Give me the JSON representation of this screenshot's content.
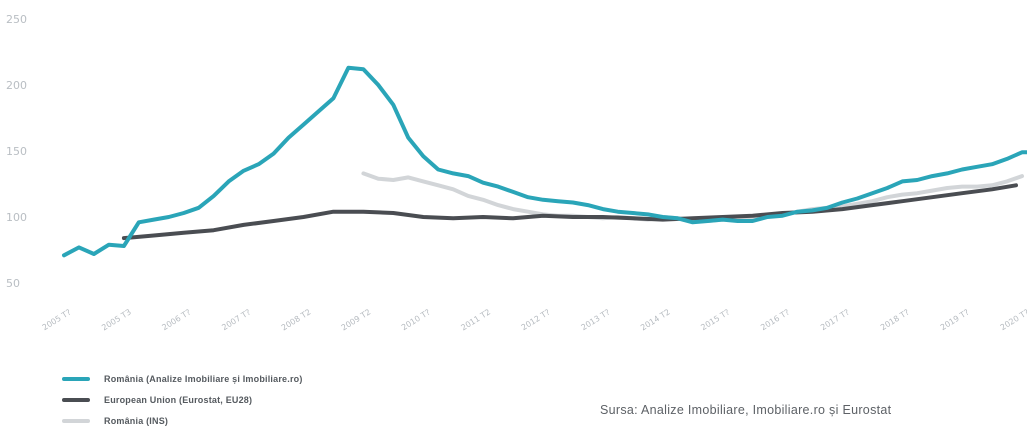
{
  "chart_data": {
    "type": "line",
    "title": "",
    "xlabel": "",
    "ylabel": "",
    "ylim": [
      50,
      250
    ],
    "y_ticks": [
      50,
      100,
      150,
      200,
      250
    ],
    "grid": false,
    "legend_position": "bottom-left",
    "x_tick_labels": [
      "2005 T?",
      "2005 T3",
      "2006 T?",
      "2007 T?",
      "2008 T2",
      "2009 T2",
      "2010 T?",
      "2011 T2",
      "2012 T?",
      "2013 T?",
      "2014 T2",
      "2015 T?",
      "2016 T?",
      "2017 T?",
      "2018 T?",
      "2019 T?",
      "2020 T?"
    ],
    "series": [
      {
        "name": "România (Analize Imobiliare și Imobiliare.ro)",
        "color": "#2aa5b8",
        "x": [
          0,
          0.25,
          0.5,
          0.75,
          1,
          1.25,
          1.5,
          1.75,
          2,
          2.25,
          2.5,
          2.75,
          3,
          3.25,
          3.5,
          3.75,
          4,
          4.25,
          4.5,
          4.75,
          5,
          5.25,
          5.5,
          5.75,
          6,
          6.25,
          6.5,
          6.75,
          7,
          7.25,
          7.5,
          7.75,
          8,
          8.25,
          8.5,
          8.75,
          9,
          9.25,
          9.5,
          9.75,
          10,
          10.25,
          10.5,
          10.75,
          11,
          11.25,
          11.5,
          11.75,
          12,
          12.25,
          12.5,
          12.75,
          13,
          13.25,
          13.5,
          13.75,
          14,
          14.25,
          14.5,
          14.75,
          15,
          15.25,
          15.5,
          15.75,
          16,
          16.25
        ],
        "values": [
          71,
          77,
          72,
          79,
          78,
          96,
          98,
          100,
          103,
          107,
          116,
          127,
          135,
          140,
          148,
          160,
          170,
          180,
          190,
          213,
          212,
          200,
          185,
          160,
          146,
          136,
          133,
          131,
          126,
          123,
          119,
          115,
          113,
          112,
          111,
          109,
          106,
          104,
          103,
          102,
          100,
          99,
          96,
          97,
          98,
          97,
          97,
          100,
          101,
          104,
          105,
          107,
          111,
          114,
          118,
          122,
          127,
          128,
          131,
          133,
          136,
          138,
          140,
          144,
          149,
          149
        ],
        "width": 4
      },
      {
        "name": "European Union (Eurostat, EU28)",
        "color": "#4a4d52",
        "x": [
          1,
          1.5,
          2,
          2.5,
          3,
          3.5,
          4,
          4.5,
          5,
          5.5,
          6,
          6.5,
          7,
          7.5,
          8,
          8.5,
          9,
          9.5,
          10,
          10.5,
          11,
          11.5,
          12,
          12.5,
          13,
          13.5,
          14,
          14.5,
          15,
          15.5,
          15.9
        ],
        "values": [
          84,
          86,
          88,
          90,
          94,
          97,
          100,
          104,
          104,
          103,
          100,
          99,
          100,
          99,
          101,
          100,
          100,
          99,
          98,
          99,
          100,
          101,
          103,
          104,
          106,
          109,
          112,
          115,
          118,
          121,
          124
        ],
        "width": 4
      },
      {
        "name": "România (INS)",
        "color": "#d2d5d8",
        "x": [
          5,
          5.25,
          5.5,
          5.75,
          6,
          6.25,
          6.5,
          6.75,
          7,
          7.25,
          7.5,
          7.75,
          8,
          8.25,
          8.5,
          8.75,
          9,
          9.25,
          9.5,
          9.75,
          10,
          10.25,
          10.5,
          10.75,
          11,
          11.25,
          11.5,
          11.75,
          12,
          12.25,
          12.5,
          12.75,
          13,
          13.25,
          13.5,
          13.75,
          14,
          14.25,
          14.5,
          14.75,
          15,
          15.25,
          15.5,
          15.75,
          16
        ],
        "values": [
          133,
          129,
          128,
          130,
          127,
          124,
          121,
          116,
          113,
          109,
          106,
          104,
          102,
          101,
          101,
          100,
          99,
          100,
          99,
          98,
          100,
          99,
          98,
          97,
          98,
          99,
          100,
          101,
          102,
          104,
          106,
          107,
          108,
          110,
          112,
          115,
          117,
          118,
          120,
          122,
          123,
          123,
          124,
          127,
          131
        ],
        "width": 4
      }
    ]
  },
  "legend": [
    {
      "label": "România (Analize Imobiliare și Imobiliare.ro)",
      "color": "#2aa5b8"
    },
    {
      "label": "European Union (Eurostat, EU28)",
      "color": "#4a4d52"
    },
    {
      "label": "România (INS)",
      "color": "#d2d5d8"
    }
  ],
  "source": "Sursa: Analize Imobiliare, Imobiliare.ro și Eurostat"
}
